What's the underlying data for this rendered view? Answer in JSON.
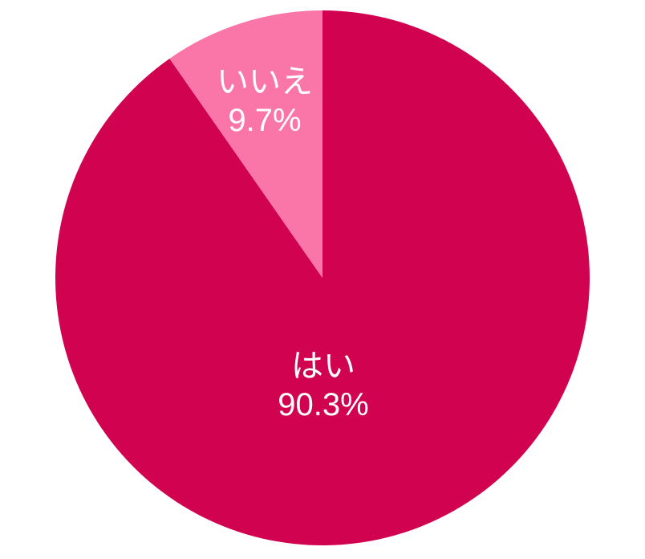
{
  "chart_data": {
    "type": "pie",
    "title": "",
    "legend_position": "none",
    "background_color": "#ffffff",
    "label_color": "#ffffff",
    "start_angle_deg": 0,
    "direction": "clockwise",
    "series": [
      {
        "name": "yes",
        "label": "はい",
        "value": 90.3,
        "value_text": "90.3%",
        "color": "#d1024f"
      },
      {
        "name": "no",
        "label": "いいえ",
        "value": 9.7,
        "value_text": "9.7%",
        "color": "#fa76a8"
      }
    ]
  }
}
